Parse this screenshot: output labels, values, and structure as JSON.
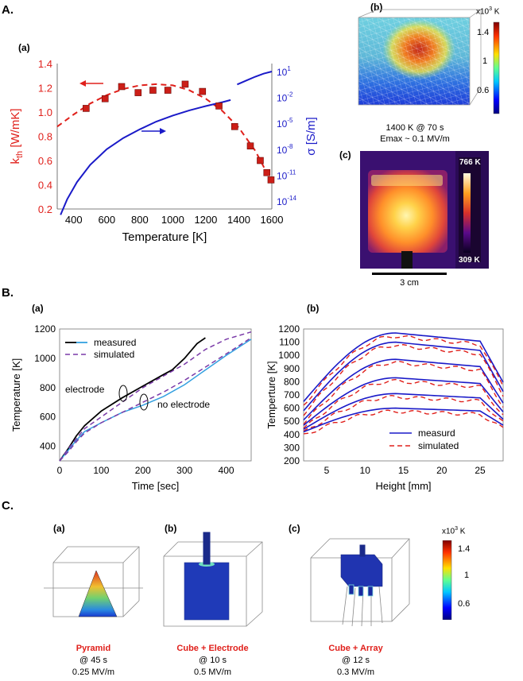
{
  "sections": {
    "A": "A.",
    "B": "B.",
    "C": "C."
  },
  "panelA": {
    "label_a": "(a)",
    "label_b": "(b)",
    "label_c": "(c)",
    "chart_data": {
      "type": "scatter",
      "title": "",
      "xlabel": "Temperature [K]",
      "ylabel_left": "k_th [W/mK]",
      "ylabel_left_main": "k",
      "ylabel_left_sub": "th",
      "ylabel_left_unit": " [W/mK]",
      "ylabel_right": "σ [S/m]",
      "xlim": [
        300,
        1600
      ],
      "ylim_left": [
        0.2,
        1.4
      ],
      "xticks": [
        "400",
        "600",
        "800",
        "1000",
        "1200",
        "1400",
        "1600"
      ],
      "yticks_left": [
        "0.2",
        "0.4",
        "0.6",
        "0.8",
        "1.0",
        "1.2",
        "1.4"
      ],
      "yticks_right": [
        {
          "base": "10",
          "exp": "1"
        },
        {
          "base": "10",
          "exp": "-2"
        },
        {
          "base": "10",
          "exp": "-5"
        },
        {
          "base": "10",
          "exp": "-8"
        },
        {
          "base": "10",
          "exp": "-11"
        },
        {
          "base": "10",
          "exp": "-14"
        }
      ],
      "series": [
        {
          "name": "k_th measured",
          "x": [
            475,
            590,
            690,
            790,
            880,
            970,
            1075,
            1180,
            1280,
            1375,
            1470,
            1530,
            1570,
            1595
          ],
          "y": [
            1.03,
            1.11,
            1.21,
            1.16,
            1.18,
            1.18,
            1.23,
            1.17,
            1.05,
            0.88,
            0.72,
            0.6,
            0.5,
            0.44
          ]
        },
        {
          "name": "k_th fit",
          "x": [
            300,
            400,
            500,
            600,
            700,
            800,
            900,
            1000,
            1100,
            1200,
            1300,
            1400,
            1500,
            1600
          ],
          "y": [
            0.88,
            0.98,
            1.07,
            1.14,
            1.19,
            1.22,
            1.23,
            1.22,
            1.18,
            1.11,
            1.01,
            0.87,
            0.68,
            0.42
          ]
        },
        {
          "name": "sigma (low T)",
          "x": [
            320,
            360,
            420,
            500,
            600,
            700,
            800,
            900,
            1000,
            1100,
            1200,
            1300,
            1350
          ],
          "y": [
            -15.6,
            -13.8,
            -11.8,
            -9.8,
            -8.0,
            -6.7,
            -5.7,
            -4.8,
            -4.1,
            -3.5,
            -3.0,
            -2.55,
            -2.3
          ]
        },
        {
          "name": "sigma (high T)",
          "x": [
            1390,
            1450,
            1500,
            1550,
            1600
          ],
          "y": [
            -0.5,
            0.0,
            0.4,
            0.75,
            1.0
          ]
        }
      ],
      "colors": {
        "left": "#e0201b",
        "right": "#1a1ac8",
        "marker": "#cc1e17"
      }
    },
    "sim3d": {
      "colorbar_unit_base": "x10",
      "colorbar_unit_exp": "3",
      "colorbar_unit_tail": " K",
      "colorbar_ticks": [
        "1.4",
        "1",
        "0.6"
      ],
      "caption1": "1400 K @ 70 s",
      "caption2": "Emax ~  0.1 MV/m"
    },
    "thermal": {
      "max": "766 K",
      "min": "309 K",
      "scale": "3 cm"
    }
  },
  "panelB": {
    "label_a": "(a)",
    "label_b": "(b)",
    "chart_data": [
      {
        "type": "line",
        "xlabel": "Time [sec]",
        "ylabel": "Temperature [K]",
        "xlim": [
          0,
          460
        ],
        "ylim": [
          300,
          1200
        ],
        "xticks": [
          "0",
          "100",
          "200",
          "300",
          "400"
        ],
        "yticks": [
          "400",
          "600",
          "800",
          "1000",
          "1200"
        ],
        "legend": [
          "measured",
          "simulated"
        ],
        "annotations": [
          "electrode",
          "no electrode"
        ],
        "series": [
          {
            "name": "measured electrode",
            "x": [
              0,
              20,
              40,
              60,
              100,
              150,
              200,
              250,
              270,
              300,
              330,
              350
            ],
            "y": [
              300,
              380,
              470,
              540,
              640,
              730,
              810,
              890,
              920,
              1000,
              1100,
              1140
            ]
          },
          {
            "name": "measured no electrode",
            "x": [
              0,
              20,
              40,
              60,
              100,
              150,
              200,
              250,
              300,
              350,
              400,
              460
            ],
            "y": [
              300,
              370,
              440,
              500,
              560,
              630,
              680,
              740,
              820,
              920,
              1020,
              1130
            ]
          },
          {
            "name": "simulated electrode",
            "x": [
              0,
              20,
              40,
              60,
              100,
              150,
              200,
              250,
              300,
              350,
              400,
              460
            ],
            "y": [
              300,
              380,
              450,
              520,
              600,
              700,
              800,
              880,
              960,
              1060,
              1130,
              1180
            ]
          },
          {
            "name": "simulated no electrode",
            "x": [
              0,
              20,
              40,
              60,
              100,
              150,
              200,
              250,
              300,
              350,
              400,
              460
            ],
            "y": [
              300,
              360,
              430,
              490,
              560,
              630,
              700,
              770,
              850,
              940,
              1030,
              1140
            ]
          }
        ]
      },
      {
        "type": "line",
        "xlabel": "Height [mm]",
        "ylabel": "Temperture [K]",
        "xlim": [
          2,
          28
        ],
        "ylim": [
          200,
          1200
        ],
        "xticks": [
          "5",
          "10",
          "15",
          "20",
          "25"
        ],
        "yticks": [
          "200",
          "300",
          "400",
          "500",
          "600",
          "700",
          "800",
          "900",
          "1000",
          "1100",
          "1200"
        ],
        "legend": [
          "measurd",
          "simulated"
        ],
        "profiles_peak": [
          1170,
          1100,
          970,
          830,
          710,
          600
        ],
        "profiles_base": [
          650,
          580,
          510,
          470,
          440,
          420
        ]
      }
    ]
  },
  "panelC": {
    "label_a": "(a)",
    "label_b": "(b)",
    "label_c": "(c)",
    "colorbar_unit_base": "x10",
    "colorbar_unit_exp": "3",
    "colorbar_unit_tail": " K",
    "colorbar_ticks": [
      "1.4",
      "1",
      "0.6"
    ],
    "items": [
      {
        "title": "Pyramid",
        "time": "@ 45 s",
        "field": "0.25 MV/m"
      },
      {
        "title": "Cube + Electrode",
        "time": "@ 10 s",
        "field": "0.5 MV/m"
      },
      {
        "title": "Cube + Array",
        "time": "@ 12 s",
        "field": "0.3 MV/m"
      }
    ]
  }
}
